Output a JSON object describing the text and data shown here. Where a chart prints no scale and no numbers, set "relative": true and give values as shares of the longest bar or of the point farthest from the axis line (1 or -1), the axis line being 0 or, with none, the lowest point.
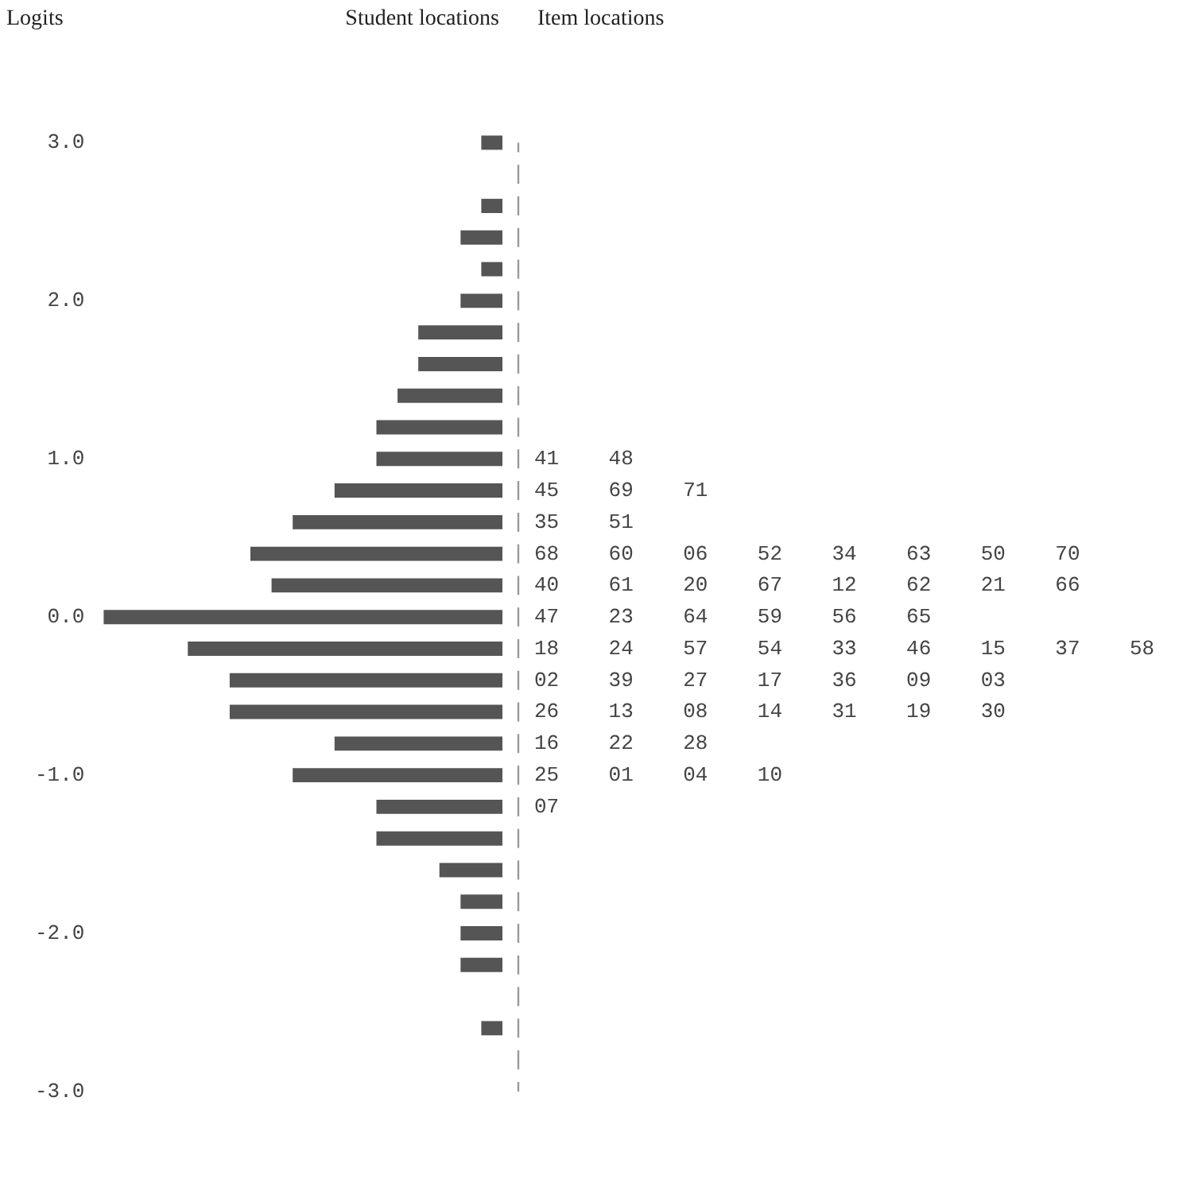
{
  "chart_data": {
    "type": "bar",
    "orientation": "horizontal",
    "relative": true,
    "ylabel": "Logits",
    "xlabel": "Student locations",
    "color": "#555555",
    "tick_labels": "y",
    "x": [
      3.0,
      2.8,
      2.6,
      2.4,
      2.2,
      2.0,
      1.8,
      1.6,
      1.4,
      1.2,
      1.0,
      0.8,
      0.6,
      0.4,
      0.2,
      0.0,
      -0.2,
      -0.4,
      -0.6,
      -0.8,
      -1.0,
      -1.2,
      -1.4,
      -1.6,
      -1.8,
      -2.0,
      -2.2,
      -2.4,
      -2.6,
      -2.8,
      -3.0
    ],
    "values": [
      -0.053,
      0,
      -0.053,
      -0.105,
      -0.053,
      -0.105,
      -0.211,
      -0.211,
      -0.263,
      -0.316,
      -0.316,
      -0.421,
      -0.526,
      -0.632,
      -0.579,
      -1,
      -0.789,
      -0.684,
      -0.684,
      -0.421,
      -0.526,
      -0.316,
      -0.316,
      -0.158,
      -0.105,
      -0.105,
      -0.105,
      0,
      -0.053,
      0,
      0
    ],
    "ylim": [
      -3,
      3
    ],
    "yticks": [
      {
        "value": 3,
        "label": "3.0"
      },
      {
        "value": 2,
        "label": "2.0"
      },
      {
        "value": 1,
        "label": "1.0"
      },
      {
        "value": 0,
        "label": "0.0"
      },
      {
        "value": -1,
        "label": "-1.0"
      },
      {
        "value": -2,
        "label": "-2.0"
      },
      {
        "value": -3,
        "label": "-3.0"
      }
    ],
    "annotations": [
      "Item locations",
      "41    48",
      "45    69    71",
      "35    51",
      "68    60    06    52    34    63    50    70",
      "40    61    20    67    12    62    21    66",
      "47    23    64    59    56    65",
      "18    24    57    54    33    46    15    37    58",
      "02    39    27    17    36    09    03",
      "26    13    08    14    31    19    30",
      "16    22    28",
      "25    01    04    10",
      "07"
    ]
  }
}
